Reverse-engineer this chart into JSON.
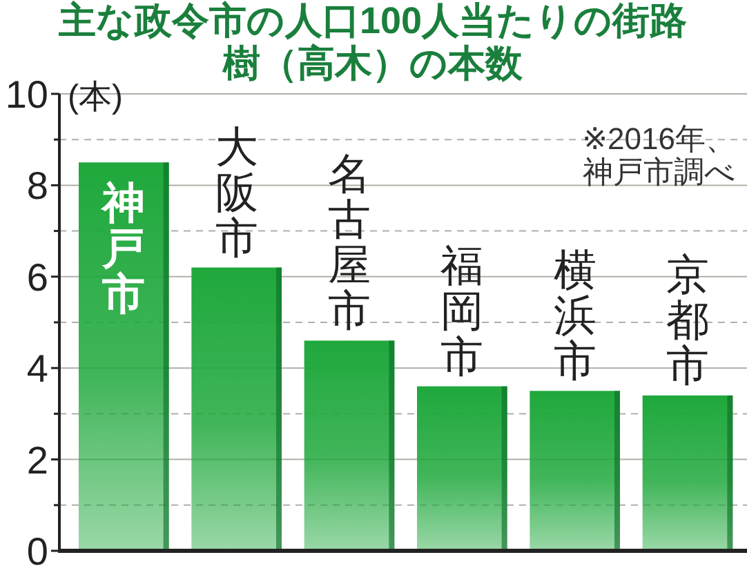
{
  "chart_data": {
    "type": "bar",
    "title": "主な政令市の人口100人当たりの街路樹（高木）の本数",
    "ylabel": "(本)",
    "annotations": [
      "※2016年、",
      "神戸市調べ"
    ],
    "categories": [
      "神戸市",
      "大阪市",
      "名古屋市",
      "福岡市",
      "横浜市",
      "京都市"
    ],
    "values": [
      8.5,
      6.2,
      4.6,
      3.6,
      3.5,
      3.4
    ],
    "color": "#1fa83c",
    "ylim": [
      0,
      10
    ],
    "yticks": [
      0,
      {
        "value": 1,
        "label": null
      },
      2,
      {
        "value": 3,
        "label": null
      },
      4,
      {
        "value": 5,
        "label": null
      },
      6,
      {
        "value": 7,
        "label": null
      },
      8,
      {
        "value": 9,
        "label": null
      },
      10
    ],
    "grid": "y"
  }
}
